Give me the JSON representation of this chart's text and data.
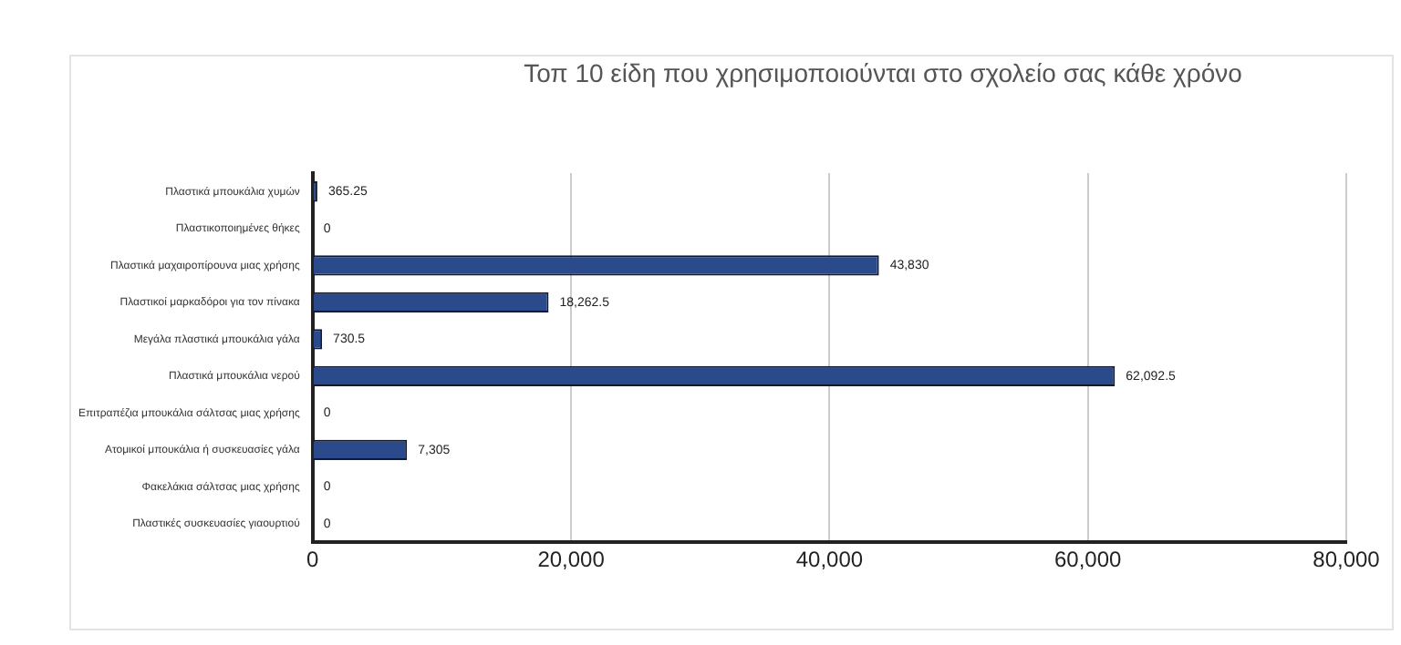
{
  "chart_data": {
    "type": "bar",
    "orientation": "horizontal",
    "title": "Τοπ 10 είδη που χρησιμοποιούνται στο σχολείο σας κάθε χρόνο",
    "categories": [
      "Πλαστικά μπουκάλια χυμών",
      "Πλαστικοποιημένες θήκες",
      "Πλαστικά μαχαιροπίρουνα μιας χρήσης",
      "Πλαστικοί μαρκαδόροι για τον πίνακα",
      "Μεγάλα πλαστικά μπουκάλια γάλα",
      "Πλαστικά μπουκάλια νερού",
      "Επιτραπέζια μπουκάλια σάλτσας μιας χρήσης",
      "Ατομικοί μπουκάλια ή συσκευασίες γάλα",
      "Φακελάκια σάλτσας μιας χρήσης",
      "Πλαστικές συσκευασίες γιαουρτιού"
    ],
    "values": [
      365.25,
      0,
      43830,
      18262.5,
      730.5,
      62092.5,
      0,
      7305,
      0,
      0
    ],
    "value_labels": [
      "365.25",
      "0",
      "43,830",
      "18,262.5",
      "730.5",
      "62,092.5",
      "0",
      "7,305",
      "0",
      "0"
    ],
    "color": "#2a4a8c",
    "xlim": [
      0,
      80000
    ],
    "xticks": [
      {
        "value": 0,
        "label": "0"
      },
      {
        "value": 20000,
        "label": "20,000"
      },
      {
        "value": 40000,
        "label": "40,000"
      },
      {
        "value": 60000,
        "label": "60,000"
      },
      {
        "value": 80000,
        "label": "80,000"
      }
    ],
    "grid": "x",
    "legend": false
  }
}
